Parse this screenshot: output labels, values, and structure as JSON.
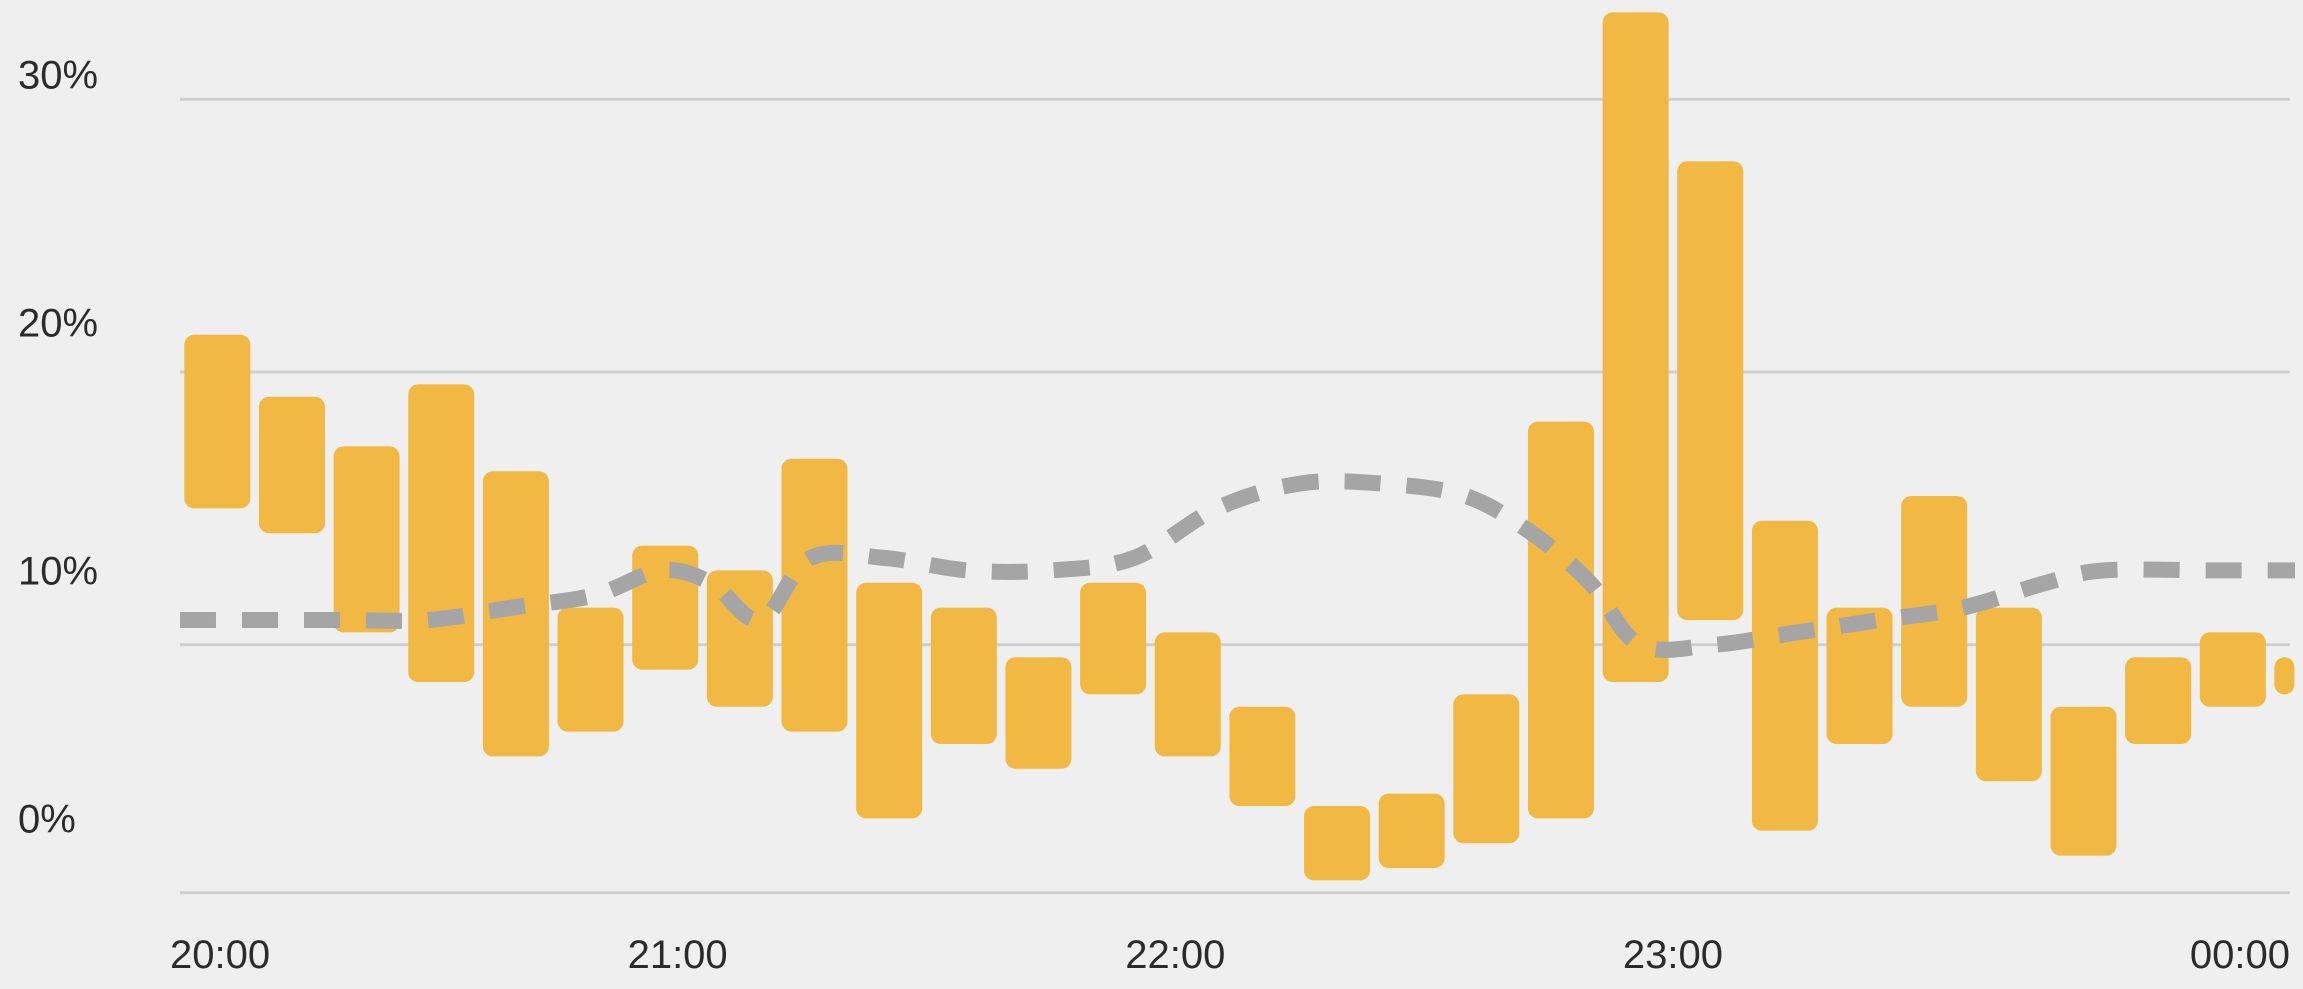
{
  "chart_data": {
    "type": "floating-bar",
    "title": "",
    "xlabel": "",
    "ylabel": "",
    "ylim": [
      -3,
      33
    ],
    "y_ticks": [
      {
        "value": 30,
        "label": "30%"
      },
      {
        "value": 20,
        "label": "20%"
      },
      {
        "value": 10,
        "label": "10%"
      },
      {
        "value": 0,
        "label": "0%"
      }
    ],
    "gridlines": [
      -3,
      7,
      18,
      29
    ],
    "x_ticks": [
      {
        "value": 0,
        "label": "20:00"
      },
      {
        "value": 60,
        "label": "21:00"
      },
      {
        "value": 120,
        "label": "22:00"
      },
      {
        "value": 180,
        "label": "23:00"
      },
      {
        "value": 240,
        "label": "00:00"
      }
    ],
    "xlim": [
      0,
      255
    ],
    "bar_series": {
      "color": "#f2b844",
      "bars": [
        {
          "x": 4.5,
          "low": 12.5,
          "high": 19.5
        },
        {
          "x": 13.5,
          "low": 11.5,
          "high": 17.0
        },
        {
          "x": 22.5,
          "low": 7.5,
          "high": 15.0
        },
        {
          "x": 31.5,
          "low": 5.5,
          "high": 17.5
        },
        {
          "x": 40.5,
          "low": 2.5,
          "high": 14.0
        },
        {
          "x": 49.5,
          "low": 3.5,
          "high": 8.5
        },
        {
          "x": 58.5,
          "low": 6.0,
          "high": 11.0
        },
        {
          "x": 67.5,
          "low": 4.5,
          "high": 10.0
        },
        {
          "x": 76.5,
          "low": 3.5,
          "high": 14.5
        },
        {
          "x": 85.5,
          "low": 0.0,
          "high": 9.5
        },
        {
          "x": 94.5,
          "low": 3.0,
          "high": 8.5
        },
        {
          "x": 103.5,
          "low": 2.0,
          "high": 6.5
        },
        {
          "x": 112.5,
          "low": 5.0,
          "high": 9.5
        },
        {
          "x": 121.5,
          "low": 2.5,
          "high": 7.5
        },
        {
          "x": 130.5,
          "low": 0.5,
          "high": 4.5
        },
        {
          "x": 139.5,
          "low": -2.5,
          "high": 0.5
        },
        {
          "x": 148.5,
          "low": -2.0,
          "high": 1.0
        },
        {
          "x": 157.5,
          "low": -1.0,
          "high": 5.0
        },
        {
          "x": 166.5,
          "low": 0.0,
          "high": 16.0
        },
        {
          "x": 175.5,
          "low": 5.5,
          "high": 32.5
        },
        {
          "x": 184.5,
          "low": 8.0,
          "high": 26.5
        },
        {
          "x": 193.5,
          "low": -0.5,
          "high": 12.0
        },
        {
          "x": 202.5,
          "low": 3.0,
          "high": 8.5
        },
        {
          "x": 211.5,
          "low": 4.5,
          "high": 13.0
        },
        {
          "x": 220.5,
          "low": 1.5,
          "high": 8.5
        },
        {
          "x": 229.5,
          "low": -1.5,
          "high": 4.5
        },
        {
          "x": 238.5,
          "low": 3.0,
          "high": 6.5
        },
        {
          "x": 247.5,
          "low": 4.5,
          "high": 7.5
        },
        {
          "x": 256.5,
          "low": 5.0,
          "high": 6.5
        }
      ]
    },
    "line_series": {
      "style": "dashed",
      "color": "#a5a5a5",
      "points": [
        {
          "x": 0,
          "y": 8.0
        },
        {
          "x": 10,
          "y": 8.0
        },
        {
          "x": 20,
          "y": 8.0
        },
        {
          "x": 30,
          "y": 8.0
        },
        {
          "x": 40,
          "y": 8.5
        },
        {
          "x": 50,
          "y": 9.0
        },
        {
          "x": 58,
          "y": 10.0
        },
        {
          "x": 64,
          "y": 9.5
        },
        {
          "x": 70,
          "y": 8.0
        },
        {
          "x": 76,
          "y": 10.5
        },
        {
          "x": 85,
          "y": 10.5
        },
        {
          "x": 95,
          "y": 10.0
        },
        {
          "x": 105,
          "y": 10.0
        },
        {
          "x": 115,
          "y": 10.5
        },
        {
          "x": 125,
          "y": 12.5
        },
        {
          "x": 135,
          "y": 13.5
        },
        {
          "x": 145,
          "y": 13.5
        },
        {
          "x": 155,
          "y": 13.0
        },
        {
          "x": 163,
          "y": 11.5
        },
        {
          "x": 170,
          "y": 9.5
        },
        {
          "x": 176,
          "y": 7.0
        },
        {
          "x": 185,
          "y": 7.0
        },
        {
          "x": 195,
          "y": 7.5
        },
        {
          "x": 205,
          "y": 8.0
        },
        {
          "x": 215,
          "y": 8.5
        },
        {
          "x": 225,
          "y": 9.5
        },
        {
          "x": 232,
          "y": 10.0
        },
        {
          "x": 245,
          "y": 10.0
        },
        {
          "x": 255,
          "y": 10.0
        }
      ]
    }
  }
}
